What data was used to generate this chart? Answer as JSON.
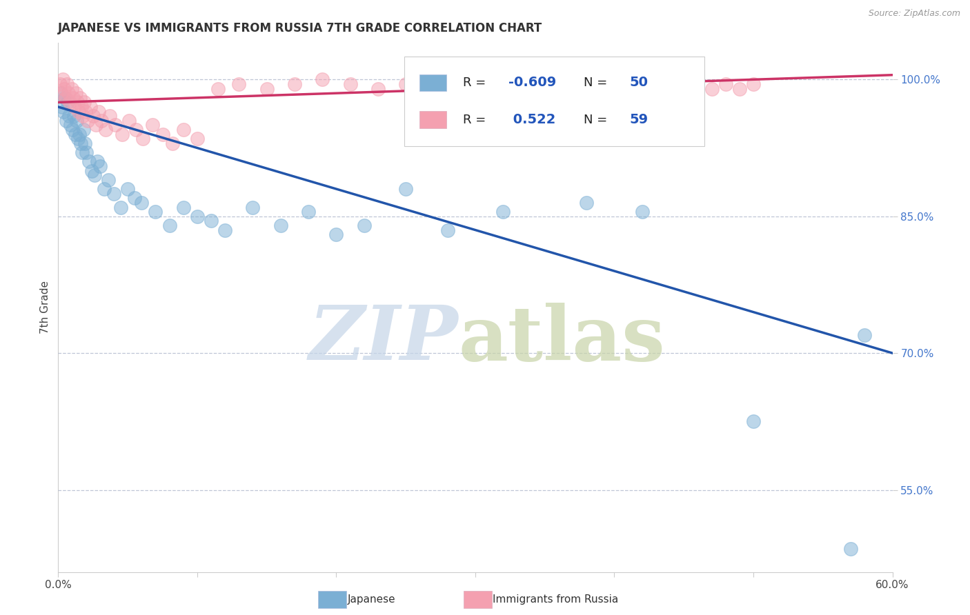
{
  "title": "JAPANESE VS IMMIGRANTS FROM RUSSIA 7TH GRADE CORRELATION CHART",
  "source": "Source: ZipAtlas.com",
  "ylabel": "7th Grade",
  "x_tick_labels": [
    "0.0%",
    "",
    "",
    "",
    "",
    "",
    "60.0%"
  ],
  "x_tick_values": [
    0.0,
    10.0,
    20.0,
    30.0,
    40.0,
    50.0,
    60.0
  ],
  "y_tick_values": [
    55.0,
    70.0,
    85.0,
    100.0
  ],
  "y_tick_labels": [
    "55.0%",
    "70.0%",
    "85.0%",
    "100.0%"
  ],
  "xlim": [
    0.0,
    60.0
  ],
  "ylim": [
    46.0,
    104.0
  ],
  "blue_R": -0.609,
  "blue_N": 50,
  "pink_R": 0.522,
  "pink_N": 59,
  "blue_color": "#7bafd4",
  "pink_color": "#f4a0b0",
  "blue_line_color": "#2255aa",
  "pink_line_color": "#cc3366",
  "legend_label_blue": "Japanese",
  "legend_label_pink": "Immigrants from Russia",
  "blue_line_x0": 0.0,
  "blue_line_y0": 97.0,
  "blue_line_x1": 60.0,
  "blue_line_y1": 70.0,
  "pink_line_x0": 0.0,
  "pink_line_y0": 97.5,
  "pink_line_x1": 60.0,
  "pink_line_y1": 100.5,
  "blue_scatter_x": [
    0.2,
    0.3,
    0.4,
    0.5,
    0.6,
    0.7,
    0.8,
    0.9,
    1.0,
    1.1,
    1.2,
    1.3,
    1.4,
    1.5,
    1.6,
    1.7,
    1.8,
    1.9,
    2.0,
    2.2,
    2.4,
    2.6,
    2.8,
    3.0,
    3.3,
    3.6,
    4.0,
    4.5,
    5.0,
    5.5,
    6.0,
    7.0,
    8.0,
    9.0,
    10.0,
    11.0,
    12.0,
    14.0,
    16.0,
    18.0,
    20.0,
    22.0,
    25.0,
    28.0,
    32.0,
    38.0,
    42.0,
    50.0,
    57.0,
    58.0
  ],
  "blue_scatter_y": [
    98.5,
    97.0,
    96.5,
    98.0,
    95.5,
    97.5,
    96.0,
    95.0,
    94.5,
    96.0,
    94.0,
    95.5,
    93.5,
    94.0,
    93.0,
    92.0,
    94.5,
    93.0,
    92.0,
    91.0,
    90.0,
    89.5,
    91.0,
    90.5,
    88.0,
    89.0,
    87.5,
    86.0,
    88.0,
    87.0,
    86.5,
    85.5,
    84.0,
    86.0,
    85.0,
    84.5,
    83.5,
    86.0,
    84.0,
    85.5,
    83.0,
    84.0,
    88.0,
    83.5,
    85.5,
    86.5,
    85.5,
    62.5,
    48.5,
    72.0
  ],
  "pink_scatter_x": [
    0.15,
    0.25,
    0.35,
    0.45,
    0.55,
    0.65,
    0.75,
    0.85,
    0.95,
    1.05,
    1.15,
    1.25,
    1.35,
    1.45,
    1.55,
    1.65,
    1.75,
    1.85,
    1.95,
    2.1,
    2.3,
    2.5,
    2.7,
    2.9,
    3.1,
    3.4,
    3.7,
    4.1,
    4.6,
    5.1,
    5.6,
    6.1,
    6.8,
    7.5,
    8.2,
    9.0,
    10.0,
    11.5,
    13.0,
    15.0,
    17.0,
    19.0,
    21.0,
    23.0,
    25.0,
    27.0,
    29.0,
    31.0,
    33.0,
    35.0,
    37.0,
    39.0,
    41.0,
    43.0,
    45.0,
    47.0,
    48.0,
    49.0,
    50.0
  ],
  "pink_scatter_y": [
    99.5,
    98.5,
    100.0,
    99.0,
    98.0,
    99.5,
    98.5,
    97.5,
    99.0,
    98.0,
    97.0,
    98.5,
    97.5,
    96.5,
    98.0,
    97.0,
    96.0,
    97.5,
    96.5,
    95.5,
    97.0,
    96.0,
    95.0,
    96.5,
    95.5,
    94.5,
    96.0,
    95.0,
    94.0,
    95.5,
    94.5,
    93.5,
    95.0,
    94.0,
    93.0,
    94.5,
    93.5,
    99.0,
    99.5,
    99.0,
    99.5,
    100.0,
    99.5,
    99.0,
    99.5,
    100.0,
    99.5,
    99.0,
    99.5,
    99.0,
    99.5,
    100.0,
    99.5,
    99.0,
    99.5,
    99.0,
    99.5,
    99.0,
    99.5
  ]
}
